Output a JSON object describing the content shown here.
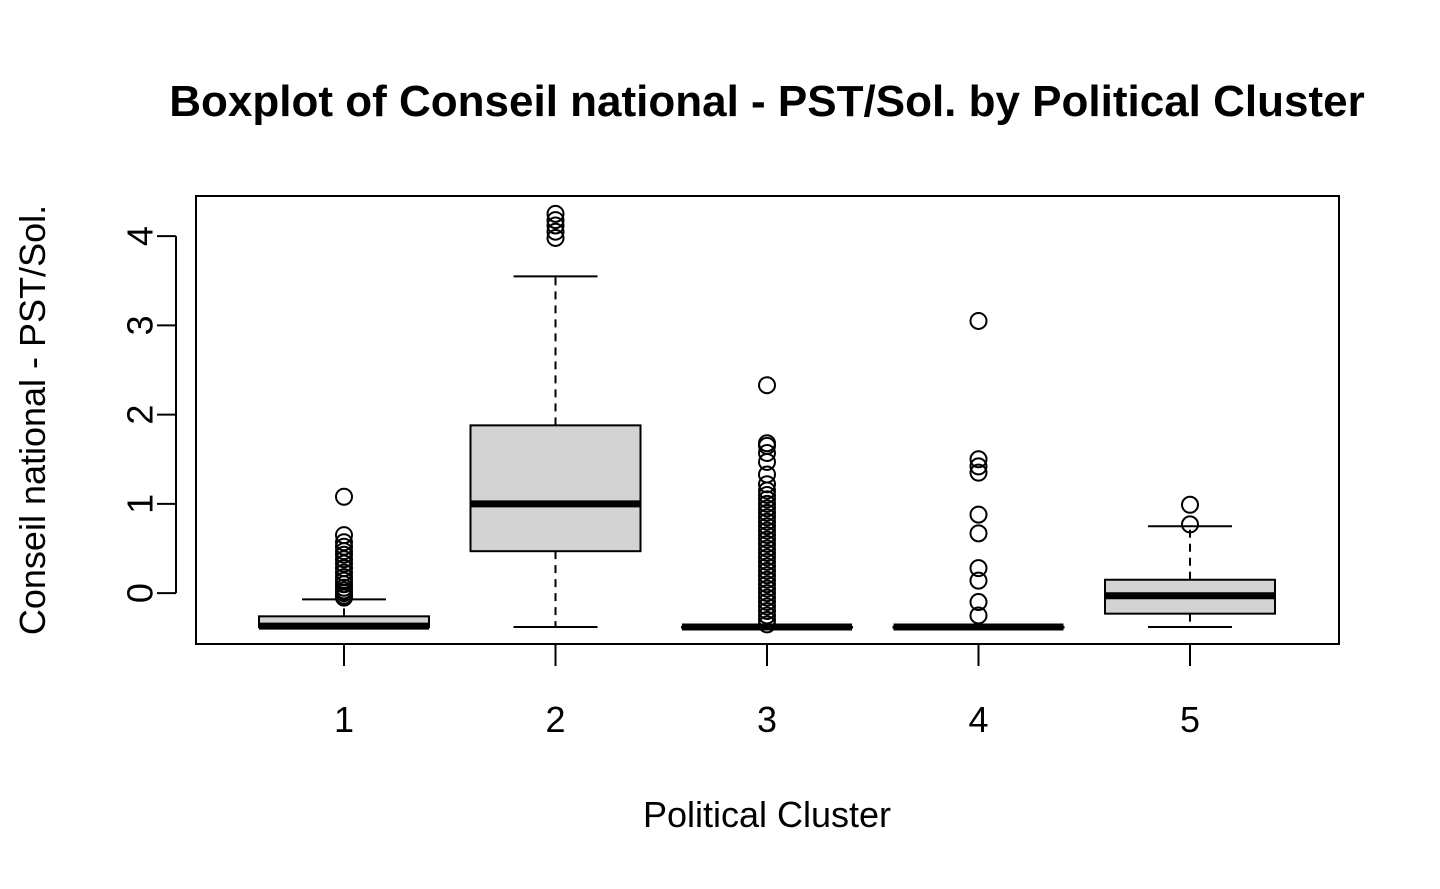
{
  "chart_data": {
    "type": "boxplot",
    "title": "Boxplot of Conseil national - PST/Sol. by Political Cluster",
    "xlabel": "Political Cluster",
    "ylabel": "Conseil national - PST/Sol.",
    "categories": [
      "1",
      "2",
      "3",
      "4",
      "5"
    ],
    "y_ticks": [
      "0",
      "1",
      "2",
      "3",
      "4"
    ],
    "ylim": [
      -0.57,
      4.45
    ],
    "grid": false,
    "legend": "none",
    "colors": {
      "box_fill": "#d3d3d3",
      "stroke": "#000000",
      "background": "#ffffff"
    },
    "boxes": [
      {
        "category": "1",
        "whisker_low": -0.38,
        "q1": -0.38,
        "median": -0.37,
        "q3": -0.26,
        "whisker_high": -0.07,
        "outliers": [
          1.08,
          0.65,
          0.57,
          0.52,
          0.47,
          0.43,
          0.38,
          0.33,
          0.28,
          0.23,
          0.18,
          0.14,
          0.1,
          0.06,
          0.03,
          0.0,
          -0.03,
          -0.05
        ]
      },
      {
        "category": "2",
        "whisker_low": -0.38,
        "q1": 0.47,
        "median": 1.0,
        "q3": 1.88,
        "whisker_high": 3.55,
        "outliers": [
          4.25,
          4.18,
          4.12,
          4.05,
          3.98
        ]
      },
      {
        "category": "3",
        "whisker_low": -0.38,
        "q1": -0.38,
        "median": -0.38,
        "q3": -0.38,
        "whisker_high": -0.38,
        "outliers": [
          2.33,
          1.68,
          1.65,
          1.57,
          1.47,
          1.33,
          1.22,
          1.15,
          1.1,
          1.05,
          1.0,
          0.95,
          0.9,
          0.85,
          0.8,
          0.75,
          0.7,
          0.65,
          0.6,
          0.55,
          0.5,
          0.45,
          0.4,
          0.35,
          0.3,
          0.25,
          0.2,
          0.15,
          0.1,
          0.05,
          0.0,
          -0.05,
          -0.1,
          -0.15,
          -0.2,
          -0.25,
          -0.3,
          -0.35
        ]
      },
      {
        "category": "4",
        "whisker_low": -0.38,
        "q1": -0.38,
        "median": -0.38,
        "q3": -0.38,
        "whisker_high": -0.38,
        "outliers": [
          3.05,
          1.5,
          1.42,
          1.35,
          0.88,
          0.67,
          0.28,
          0.14,
          -0.1,
          -0.25
        ]
      },
      {
        "category": "5",
        "whisker_low": -0.38,
        "q1": -0.23,
        "median": -0.03,
        "q3": 0.15,
        "whisker_high": 0.75,
        "outliers": [
          0.99,
          0.77
        ]
      }
    ]
  }
}
